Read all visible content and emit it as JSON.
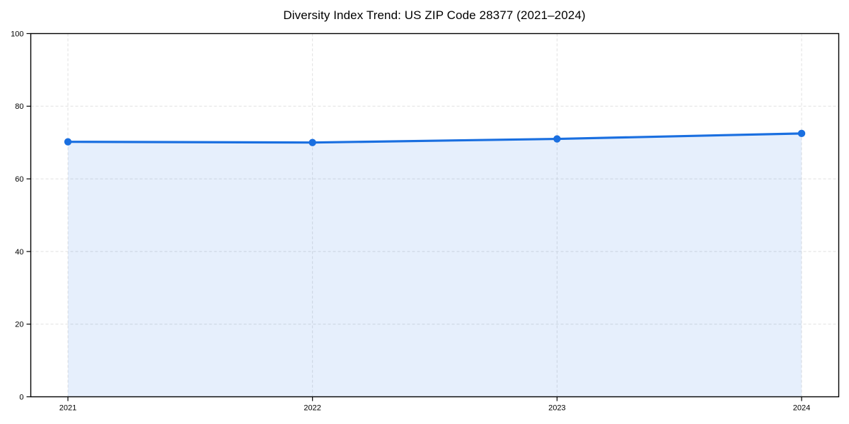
{
  "page": {
    "background": "#ffffff"
  },
  "chart_data": {
    "type": "area",
    "title": "Diversity Index Trend: US ZIP Code 28377 (2021–2024)",
    "categories": [
      "2021",
      "2022",
      "2023",
      "2024"
    ],
    "series": [
      {
        "name": "Diversity Index",
        "values": [
          70.2,
          70.0,
          71.0,
          72.5
        ]
      }
    ],
    "xlabel": "",
    "ylabel": "",
    "ylim": [
      0,
      100
    ],
    "yticks": [
      0,
      20,
      40,
      60,
      80,
      100
    ],
    "grid": true,
    "grid_style": "dashed",
    "legend": false,
    "marker": "circle",
    "colors": {
      "line": "#1a6fe0",
      "marker": "#1a6fe0",
      "fill": "rgba(26,111,224,0.11)",
      "grid": "#e0e0e0",
      "axis": "#000000",
      "text": "#000000"
    }
  }
}
